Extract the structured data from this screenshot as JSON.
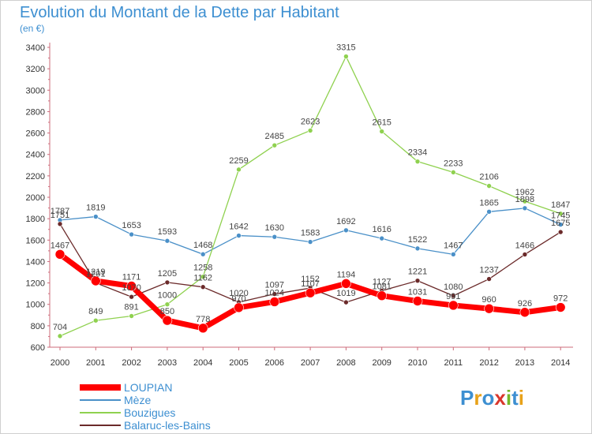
{
  "title": "Evolution du Montant de la Dette par Habitant",
  "subtitle": "(en €)",
  "logo": {
    "text": "Proxiti",
    "letters": [
      "P",
      "r",
      "o",
      "x",
      "i",
      "t",
      "i"
    ],
    "colors": [
      "#3d8fd1",
      "#e8a21a",
      "#3d8fd1",
      "#d9362b",
      "#76b82a",
      "#3d8fd1",
      "#e8a21a"
    ]
  },
  "chart_data": {
    "type": "line",
    "title": "Evolution du Montant de la Dette par Habitant",
    "subtitle": "(en €)",
    "x": [
      "2000",
      "2001",
      "2002",
      "2003",
      "2004",
      "2005",
      "2006",
      "2007",
      "2008",
      "2009",
      "2010",
      "2011",
      "2012",
      "2013",
      "2014"
    ],
    "ylim": [
      600,
      3400
    ],
    "yticks": [
      600,
      800,
      1000,
      1200,
      1400,
      1600,
      1800,
      2000,
      2200,
      2400,
      2600,
      2800,
      3000,
      3200,
      3400
    ],
    "grid": false,
    "legend_position": "bottom-left",
    "series": [
      {
        "name": "LOUPIAN",
        "color": "#ff0000",
        "values": [
          1467,
          1219,
          1171,
          850,
          778,
          970,
          1024,
          1107,
          1194,
          1081,
          1031,
          991,
          960,
          926,
          972
        ]
      },
      {
        "name": "Mèze",
        "color": "#4a90c8",
        "values": [
          1787,
          1819,
          1653,
          1593,
          1468,
          1642,
          1630,
          1583,
          1692,
          1616,
          1522,
          1467,
          1865,
          1898,
          1745
        ]
      },
      {
        "name": "Bouzigues",
        "color": "#8fd14f",
        "values": [
          704,
          849,
          891,
          1000,
          1258,
          2259,
          2485,
          2623,
          3315,
          2615,
          2334,
          2233,
          2106,
          1962,
          1847
        ]
      },
      {
        "name": "Balaruc-les-Bains",
        "color": "#6b2a2a",
        "values": [
          1751,
          1201,
          1070,
          1205,
          1162,
          1020,
          1097,
          1152,
          1019,
          1127,
          1221,
          1080,
          1237,
          1466,
          1675
        ]
      }
    ]
  }
}
